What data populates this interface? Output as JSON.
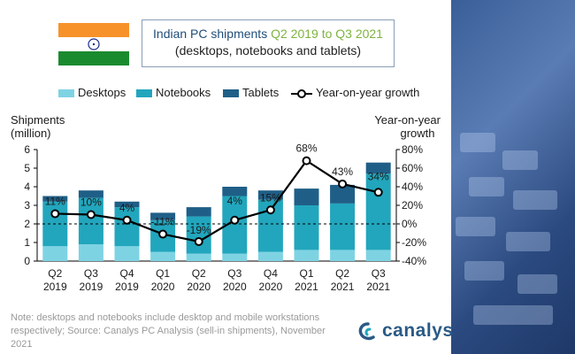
{
  "title": {
    "line1_prefix": "Indian PC shipments ",
    "line1_highlight": "Q2 2019 to Q3 2021",
    "line2": "(desktops, notebooks and tablets)"
  },
  "legend": {
    "desktops": "Desktops",
    "notebooks": "Notebooks",
    "tablets": "Tablets",
    "growth": "Year-on-year growth"
  },
  "axis": {
    "left_title_1": "Shipments",
    "left_title_2": "(million)",
    "right_title_1": "Year-on-year",
    "right_title_2": "growth"
  },
  "note": "Note: desktops and notebooks include desktop and mobile workstations respectively; Source: Canalys PC Analysis (sell-in shipments), November 2021",
  "logo": "canalys",
  "colors": {
    "desktops": "#7ed3e3",
    "notebooks": "#22a6bd",
    "tablets": "#1f5f87",
    "line": "#000000",
    "title_blue": "#1f4e79",
    "title_green": "#7fb33f",
    "saffron": "#f7922a",
    "green": "#1a8a2f",
    "chakra": "#1a2b8c"
  },
  "chart_data": {
    "type": "bar",
    "stacked": true,
    "categories": [
      [
        "Q2",
        "2019"
      ],
      [
        "Q3",
        "2019"
      ],
      [
        "Q4",
        "2019"
      ],
      [
        "Q1",
        "2020"
      ],
      [
        "Q2",
        "2020"
      ],
      [
        "Q3",
        "2020"
      ],
      [
        "Q4",
        "2020"
      ],
      [
        "Q1",
        "2021"
      ],
      [
        "Q2",
        "2021"
      ],
      [
        "Q3",
        "2021"
      ]
    ],
    "series": [
      {
        "name": "Desktops",
        "values": [
          0.8,
          0.9,
          0.8,
          0.5,
          0.4,
          0.4,
          0.5,
          0.6,
          0.6,
          0.6
        ]
      },
      {
        "name": "Notebooks",
        "values": [
          2.4,
          2.5,
          2.1,
          1.7,
          2.0,
          3.1,
          2.8,
          2.4,
          2.5,
          4.1
        ]
      },
      {
        "name": "Tablets",
        "values": [
          0.3,
          0.4,
          0.3,
          0.4,
          0.5,
          0.5,
          0.5,
          0.9,
          1.0,
          0.6
        ]
      }
    ],
    "line": {
      "name": "Year-on-year growth",
      "values": [
        11,
        10,
        4,
        -11,
        -19,
        4,
        15,
        68,
        43,
        34
      ],
      "labels": [
        "11%",
        "10%",
        "4%",
        "-11%",
        "-19%",
        "4%",
        "15%",
        "68%",
        "43%",
        "34%"
      ]
    },
    "ylim_left": [
      0,
      6
    ],
    "yticks_left": [
      "0",
      "1",
      "2",
      "3",
      "4",
      "5",
      "6"
    ],
    "ylim_right": [
      -40,
      80
    ],
    "yticks_right": [
      "-40%",
      "-20%",
      "0%",
      "20%",
      "40%",
      "60%",
      "80%"
    ],
    "ylabel_left": "Shipments (million)",
    "ylabel_right": "Year-on-year growth",
    "grid": false
  }
}
